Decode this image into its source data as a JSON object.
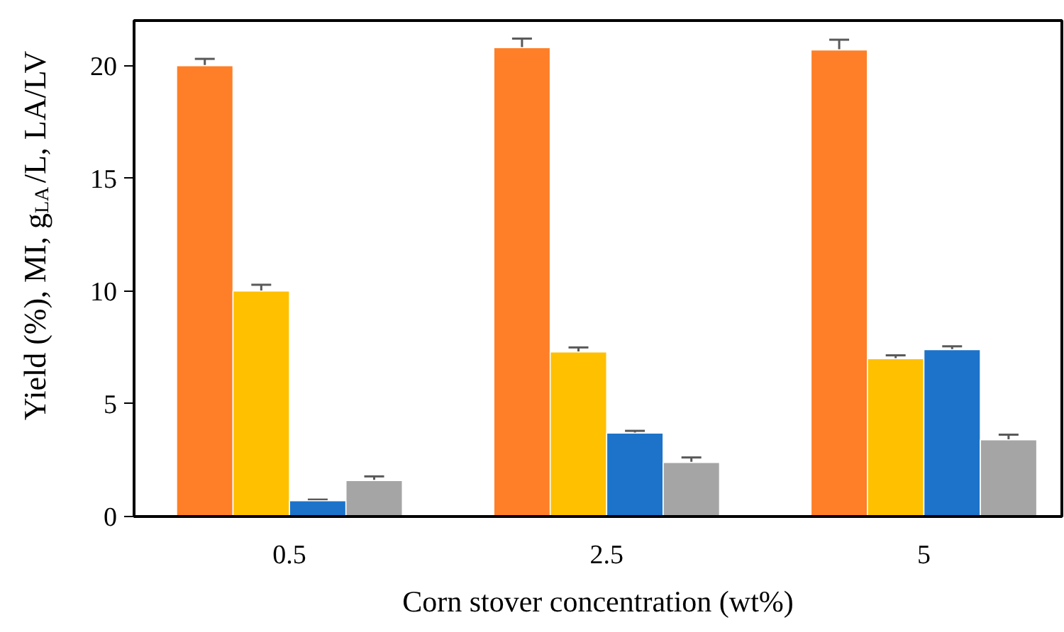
{
  "chart_data": {
    "type": "bar",
    "xlabel": "Corn stover concentration (wt%)",
    "ylabel": "Yield (%), MI, g$_{LA}$/L, LA/LV",
    "categories": [
      "0.5",
      "2.5",
      "5"
    ],
    "ylim": [
      0,
      22
    ],
    "yticks": [
      0,
      5,
      10,
      15,
      20
    ],
    "grid": false,
    "series": [
      {
        "color": "#fe7f27",
        "values": [
          20.0,
          20.8,
          20.7
        ],
        "errors": [
          0.3,
          0.4,
          0.45
        ]
      },
      {
        "color": "#ffc000",
        "values": [
          10.0,
          7.3,
          7.0
        ],
        "errors": [
          0.28,
          0.2,
          0.15
        ]
      },
      {
        "color": "#1c73c9",
        "values": [
          0.7,
          3.7,
          7.4
        ],
        "errors": [
          0.05,
          0.1,
          0.15
        ]
      },
      {
        "color": "#a5a5a5",
        "values": [
          1.6,
          2.4,
          3.4
        ],
        "errors": [
          0.18,
          0.22,
          0.23
        ]
      }
    ]
  }
}
